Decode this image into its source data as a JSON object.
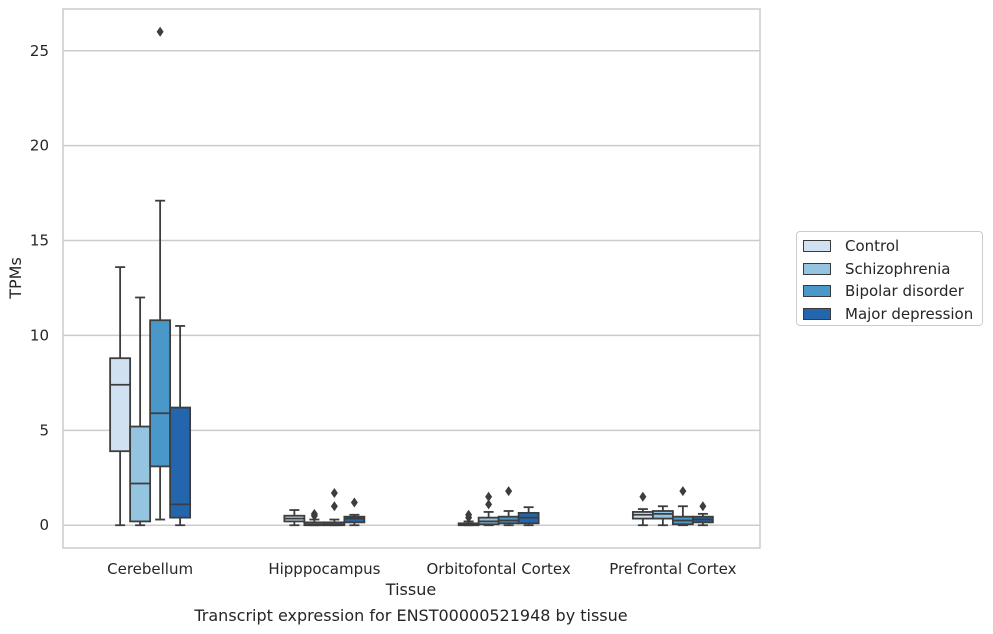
{
  "chart_data": {
    "type": "box",
    "title": "Transcript expression for ENST00000521948 by tissue",
    "xlabel": "Tissue",
    "ylabel": "TPMs",
    "categories": [
      "Cerebellum",
      "Hipppocampus",
      "Orbitofontal Cortex",
      "Prefrontal Cortex"
    ],
    "ylim": [
      -1.2,
      27.2
    ],
    "yticks": [
      "0",
      "5",
      "10",
      "15",
      "20",
      "25"
    ],
    "grid": "horizontal",
    "legend_position": "center-right",
    "series": [
      {
        "name": "Control",
        "color": "#d0e1f2",
        "boxes": [
          {
            "min": 0,
            "q1": 3.9,
            "median": 7.4,
            "q3": 8.8,
            "max": 13.6,
            "outliers": []
          },
          {
            "min": 0.0,
            "q1": 0.2,
            "median": 0.35,
            "q3": 0.5,
            "max": 0.8,
            "outliers": []
          },
          {
            "min": 0.0,
            "q1": 0.0,
            "median": 0.05,
            "q3": 0.1,
            "max": 0.2,
            "outliers": [
              0.4,
              0.55
            ]
          },
          {
            "min": 0.0,
            "q1": 0.35,
            "median": 0.55,
            "q3": 0.7,
            "max": 0.85,
            "outliers": [
              1.5
            ]
          }
        ]
      },
      {
        "name": "Schizophrenia",
        "color": "#94c4df",
        "boxes": [
          {
            "min": 0,
            "q1": 0.2,
            "median": 2.2,
            "q3": 5.2,
            "max": 12.0,
            "outliers": []
          },
          {
            "min": 0.0,
            "q1": 0.0,
            "median": 0.05,
            "q3": 0.15,
            "max": 0.3,
            "outliers": [
              0.5,
              0.6
            ]
          },
          {
            "min": 0.0,
            "q1": 0.05,
            "median": 0.2,
            "q3": 0.4,
            "max": 0.7,
            "outliers": [
              1.1,
              1.5
            ]
          },
          {
            "min": 0.0,
            "q1": 0.35,
            "median": 0.6,
            "q3": 0.75,
            "max": 1.0,
            "outliers": []
          }
        ]
      },
      {
        "name": "Bipolar disorder",
        "color": "#4a98c9",
        "boxes": [
          {
            "min": 0.3,
            "q1": 3.1,
            "median": 5.9,
            "q3": 10.8,
            "max": 17.1,
            "outliers": [
              26.0
            ]
          },
          {
            "min": 0.0,
            "q1": 0.0,
            "median": 0.05,
            "q3": 0.15,
            "max": 0.3,
            "outliers": [
              1.0,
              1.7
            ]
          },
          {
            "min": 0.0,
            "q1": 0.1,
            "median": 0.25,
            "q3": 0.45,
            "max": 0.75,
            "outliers": [
              1.8
            ]
          },
          {
            "min": 0.0,
            "q1": 0.05,
            "median": 0.25,
            "q3": 0.45,
            "max": 1.0,
            "outliers": [
              1.8
            ]
          }
        ]
      },
      {
        "name": "Major depression",
        "color": "#2366ad",
        "boxes": [
          {
            "min": 0,
            "q1": 0.4,
            "median": 1.1,
            "q3": 6.2,
            "max": 10.5,
            "outliers": []
          },
          {
            "min": 0.0,
            "q1": 0.15,
            "median": 0.35,
            "q3": 0.45,
            "max": 0.55,
            "outliers": [
              1.2
            ]
          },
          {
            "min": 0.0,
            "q1": 0.1,
            "median": 0.4,
            "q3": 0.65,
            "max": 0.95,
            "outliers": []
          },
          {
            "min": 0.0,
            "q1": 0.15,
            "median": 0.3,
            "q3": 0.45,
            "max": 0.6,
            "outliers": [
              1.0
            ]
          }
        ]
      }
    ]
  }
}
